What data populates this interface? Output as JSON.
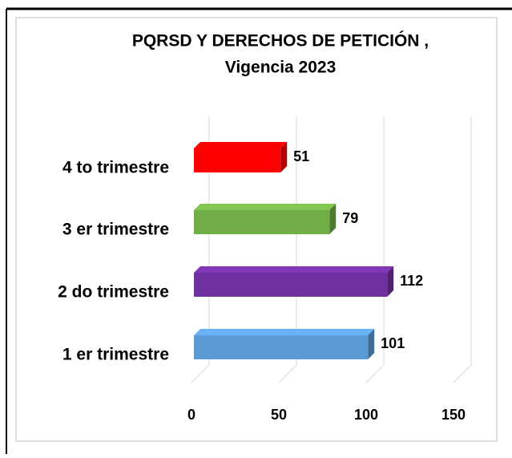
{
  "chart_data": {
    "type": "bar3d_horizontal",
    "title": [
      "PQRSD Y DERECHOS DE PETICIÓN ,",
      "Vigencia 2023"
    ],
    "categories": [
      "4 to trimestre",
      "3 er trimestre",
      "2 do trimestre",
      "1 er trimestre"
    ],
    "values": [
      51,
      79,
      112,
      101
    ],
    "colors": [
      "#ff0000",
      "#70ad47",
      "#7030a0",
      "#5b9bd5"
    ],
    "xlim": [
      0,
      150
    ],
    "xticks": [
      0,
      50,
      100,
      150
    ],
    "grid": true
  }
}
